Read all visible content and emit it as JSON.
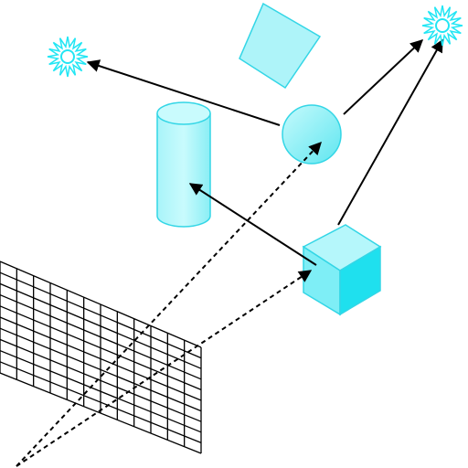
{
  "colors": {
    "background": "#ffffff",
    "object_fill": "#8ff0f6",
    "object_fill_light": "#b8f7fb",
    "object_fill_dark": "#2ee6f0",
    "object_stroke": "#33d6e6",
    "light_source": "#22e6f4",
    "ray": "#000000",
    "grid": "#000000"
  },
  "diagram": {
    "type": "ray-tracing-illustration",
    "elements": [
      "eye-point",
      "image-plane-grid",
      "sphere",
      "cylinder",
      "cube",
      "square-card",
      "light-source-left",
      "light-source-right"
    ],
    "grid": {
      "columns": 12,
      "rows": 10
    },
    "rays": {
      "primary": [
        "eye-to-sphere",
        "eye-to-cube"
      ],
      "secondary": [
        "sphere-to-left-light",
        "sphere-to-right-light",
        "cube-to-cylinder",
        "cube-to-right-light"
      ],
      "primary_style": "dashed",
      "secondary_style": "solid-with-arrowhead"
    }
  }
}
